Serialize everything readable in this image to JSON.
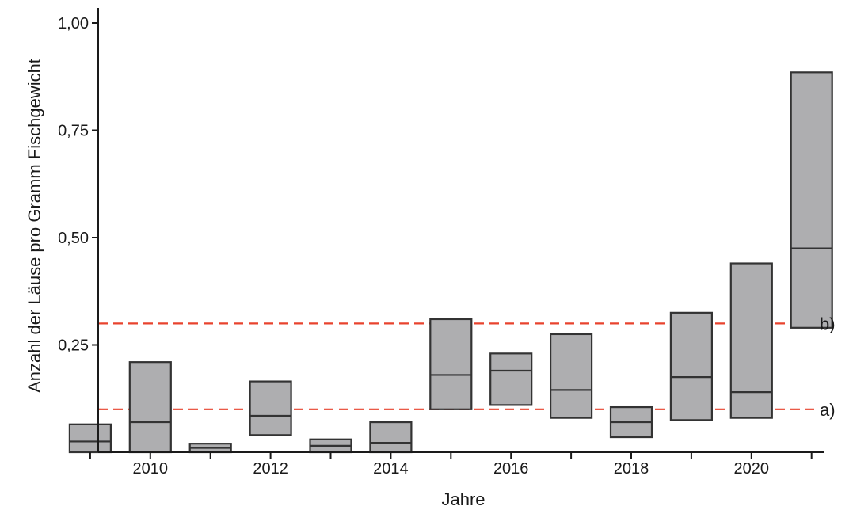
{
  "chart_data": {
    "type": "box",
    "title": "",
    "xlabel": "Jahre",
    "ylabel": "Anzahl der Läuse pro Gramm Fischgewicht",
    "ylim": [
      0,
      1.0
    ],
    "y_ticks": [
      {
        "value": 0.25,
        "label": "0,25"
      },
      {
        "value": 0.5,
        "label": "0,50"
      },
      {
        "value": 0.75,
        "label": "0,75"
      },
      {
        "value": 1.0,
        "label": "1,00"
      }
    ],
    "x_range": [
      2008.55,
      2021.8
    ],
    "x_tick_years": [
      2009,
      2010,
      2011,
      2012,
      2013,
      2014,
      2015,
      2016,
      2017,
      2018,
      2019,
      2020,
      2021
    ],
    "x_tick_labels": [
      {
        "year": 2010,
        "label": "2010"
      },
      {
        "year": 2012,
        "label": "2012"
      },
      {
        "year": 2014,
        "label": "2014"
      },
      {
        "year": 2016,
        "label": "2016"
      },
      {
        "year": 2018,
        "label": "2018"
      },
      {
        "year": 2020,
        "label": "2020"
      }
    ],
    "boxes": [
      {
        "year": 2009,
        "q1": 0.0,
        "median": 0.025,
        "q3": 0.065
      },
      {
        "year": 2010,
        "q1": 0.0,
        "median": 0.07,
        "q3": 0.21
      },
      {
        "year": 2011,
        "q1": 0.0,
        "median": 0.01,
        "q3": 0.02
      },
      {
        "year": 2012,
        "q1": 0.04,
        "median": 0.085,
        "q3": 0.165
      },
      {
        "year": 2013,
        "q1": 0.0,
        "median": 0.015,
        "q3": 0.03
      },
      {
        "year": 2014,
        "q1": 0.0,
        "median": 0.022,
        "q3": 0.07
      },
      {
        "year": 2015,
        "q1": 0.1,
        "median": 0.18,
        "q3": 0.31
      },
      {
        "year": 2016,
        "q1": 0.11,
        "median": 0.19,
        "q3": 0.23
      },
      {
        "year": 2017,
        "q1": 0.08,
        "median": 0.145,
        "q3": 0.275
      },
      {
        "year": 2018,
        "q1": 0.035,
        "median": 0.07,
        "q3": 0.105
      },
      {
        "year": 2019,
        "q1": 0.075,
        "median": 0.175,
        "q3": 0.325
      },
      {
        "year": 2020,
        "q1": 0.08,
        "median": 0.14,
        "q3": 0.44
      },
      {
        "year": 2021,
        "q1": 0.29,
        "median": 0.475,
        "q3": 0.885
      }
    ],
    "reference_lines": [
      {
        "value": 0.1,
        "label": "a)"
      },
      {
        "value": 0.3,
        "label": "b)"
      }
    ],
    "grid": false,
    "legend": "none",
    "colors": {
      "box_fill": "#aeaeb0",
      "box_stroke": "#333333",
      "reference_line": "#e8432e",
      "axis": "#1a1a1a"
    }
  }
}
